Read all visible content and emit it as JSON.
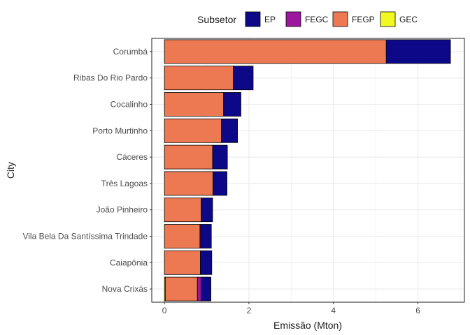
{
  "chart_data": {
    "type": "bar",
    "orientation": "horizontal",
    "stacked": true,
    "title": "",
    "xlabel": "Emissão (Mton)",
    "ylabel": "City",
    "xlim": [
      -0.3,
      7.1
    ],
    "x_ticks": [
      0,
      2,
      4,
      6
    ],
    "x_tick_labels": [
      "0",
      "2",
      "4",
      "6"
    ],
    "grid": true,
    "legend": {
      "title": "Subsetor",
      "position": "top"
    },
    "categories": [
      "Corumbá",
      "Ribas Do Rio Pardo",
      "Cocalinho",
      "Porto Murtinho",
      "Cáceres",
      "Três Lagoas",
      "João Pinheiro",
      "Vila Bela Da Santíssima Trindade",
      "Caiapônia",
      "Nova Crixás"
    ],
    "series": [
      {
        "name": "GEC",
        "color": "#F0F921",
        "values": [
          0,
          0,
          0,
          0,
          0,
          0,
          0,
          0,
          0,
          0.02
        ]
      },
      {
        "name": "FEGP",
        "color": "#ED7953",
        "values": [
          5.25,
          1.63,
          1.4,
          1.35,
          1.14,
          1.15,
          0.87,
          0.84,
          0.85,
          0.76
        ]
      },
      {
        "name": "FEGC",
        "color": "#9C179E",
        "values": [
          0,
          0,
          0,
          0,
          0,
          0,
          0,
          0.02,
          0,
          0.09
        ]
      },
      {
        "name": "EP",
        "color": "#0D0887",
        "values": [
          1.52,
          0.47,
          0.41,
          0.38,
          0.35,
          0.33,
          0.27,
          0.25,
          0.27,
          0.23
        ]
      }
    ],
    "legend_order": [
      "EP",
      "FEGC",
      "FEGP",
      "GEC"
    ]
  }
}
